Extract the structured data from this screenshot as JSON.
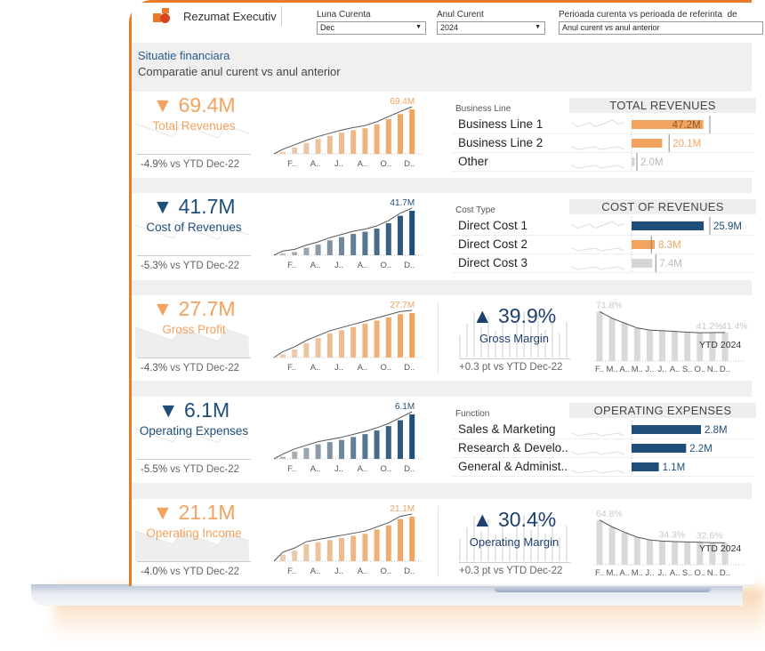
{
  "header": {
    "title": "Rezumat Executiv",
    "filters": [
      {
        "label": "Luna Curenta",
        "value": "Dec"
      },
      {
        "label": "Anul Curent",
        "value": "2024"
      },
      {
        "label": "Perioada curenta vs perioada de referinta",
        "value": "Anul curent vs anul anterior",
        "extra": "de"
      }
    ]
  },
  "page": {
    "title": "Situatie financiara",
    "subtitle": "Comparatie anul curent vs anul anterior"
  },
  "colors": {
    "orange": "#F2A35E",
    "blue": "#1F4E79",
    "gray": "#D6D6D6",
    "frame": "#EA7A2A"
  },
  "month_labels": [
    "F..",
    "A..",
    "J..",
    "A..",
    "O..",
    "D.."
  ],
  "margin_month_labels": [
    "F..",
    "M..",
    "A..",
    "M..",
    "J..",
    "J..",
    "A..",
    "S..",
    "O..",
    "N..",
    "D.."
  ],
  "kpis": [
    {
      "arrow": "▼",
      "value": "69.4M",
      "title": "Total Revenues",
      "delta": "-4.9%",
      "cmp": "vs YTD Dec-22",
      "color": "orange",
      "final_label": "69.4M",
      "monthly": [
        3,
        10,
        17,
        23,
        28,
        33,
        37,
        40,
        46,
        54,
        62,
        69.4
      ]
    },
    {
      "arrow": "▼",
      "value": "41.7M",
      "title": "Cost of Revenues",
      "delta": "-5.3%",
      "cmp": "vs YTD Dec-22",
      "color": "blue",
      "final_label": "41.7M",
      "monthly": [
        1.5,
        3,
        7,
        10,
        14,
        17,
        20,
        22,
        25,
        30,
        37,
        41.7
      ]
    },
    {
      "arrow": "▼",
      "value": "27.7M",
      "title": "Gross Profit",
      "delta": "-4.3%",
      "cmp": "vs YTD Dec-22",
      "color": "orange",
      "final_label": "27.7M",
      "monthly": [
        2,
        5,
        9,
        12,
        15,
        17,
        19,
        21,
        23,
        25,
        27,
        27.7
      ]
    },
    {
      "arrow": "▼",
      "value": "6.1M",
      "title": "Operating Expenses",
      "delta": "-5.5%",
      "cmp": "vs YTD Dec-22",
      "color": "blue",
      "final_label": "6.1M",
      "monthly": [
        0.3,
        1,
        1.5,
        2,
        2.3,
        2.6,
        3,
        3.4,
        3.9,
        4.5,
        5.3,
        6.1
      ]
    },
    {
      "arrow": "▼",
      "value": "21.1M",
      "title": "Operating Income",
      "delta": "-4.0%",
      "cmp": "vs YTD Dec-22",
      "color": "orange",
      "final_label": "21.1M",
      "monthly": [
        3,
        5,
        8,
        9,
        10,
        11,
        12,
        13,
        15,
        17,
        20,
        21.1
      ]
    }
  ],
  "breakdowns": [
    {
      "dim": "Business Line",
      "title": "TOTAL REVENUES",
      "rows": [
        {
          "label": "Business Line 1",
          "value": 47.2,
          "text": "47.2M",
          "prior": 51.5,
          "color": "orange"
        },
        {
          "label": "Business Line 2",
          "value": 20.1,
          "text": "20.1M",
          "prior": 24.7,
          "color": "orange"
        },
        {
          "label": "Other",
          "value": 2.0,
          "text": "2.0M",
          "prior": 3.5,
          "color": "gray"
        }
      ]
    },
    {
      "dim": "Cost Type",
      "title": "COST OF REVENUES",
      "rows": [
        {
          "label": "Direct Cost 1",
          "value": 25.9,
          "text": "25.9M",
          "prior": 28.1,
          "color": "blue"
        },
        {
          "label": "Direct Cost 2",
          "value": 8.3,
          "text": "8.3M",
          "prior": 7.1,
          "color": "orange"
        },
        {
          "label": "Direct Cost 3",
          "value": 7.4,
          "text": "7.4M",
          "prior": 8.7,
          "color": "gray"
        }
      ]
    },
    {
      "dim": "Function",
      "title": "OPERATING EXPENSES",
      "rows": [
        {
          "label": "Sales & Marketing",
          "value": 2.8,
          "text": "2.8M",
          "color": "blue"
        },
        {
          "label": "Research & Develo..",
          "value": 2.2,
          "text": "2.2M",
          "color": "blue"
        },
        {
          "label": "General & Administ..",
          "value": 1.1,
          "text": "1.1M",
          "color": "blue"
        }
      ]
    }
  ],
  "margins": [
    {
      "arrow": "▲",
      "value": "39.9%",
      "title": "Gross Margin",
      "delta": "+0.3 pt",
      "cmp": "vs YTD Dec-22",
      "ytd_label": "YTD 2024",
      "values": [
        71.8,
        62,
        55,
        48,
        45,
        44,
        43,
        42,
        41.2,
        41.3,
        41.4
      ],
      "labels": [
        {
          "i": 0,
          "text": "71.8%"
        },
        {
          "i": 8,
          "text": "41.2%"
        },
        {
          "i": 10,
          "text": "41.4%"
        }
      ]
    },
    {
      "arrow": "▲",
      "value": "30.4%",
      "title": "Operating Margin",
      "delta": "+0.3 pt",
      "cmp": "vs YTD Dec-22",
      "ytd_label": "YTD 2024",
      "values": [
        64.8,
        55,
        47,
        40,
        36,
        34.3,
        33.5,
        33,
        32.6,
        32,
        31.8
      ],
      "labels": [
        {
          "i": 0,
          "text": "64.8%"
        },
        {
          "i": 5,
          "text": "34.3%"
        },
        {
          "i": 8,
          "text": "32.6%"
        }
      ]
    }
  ]
}
